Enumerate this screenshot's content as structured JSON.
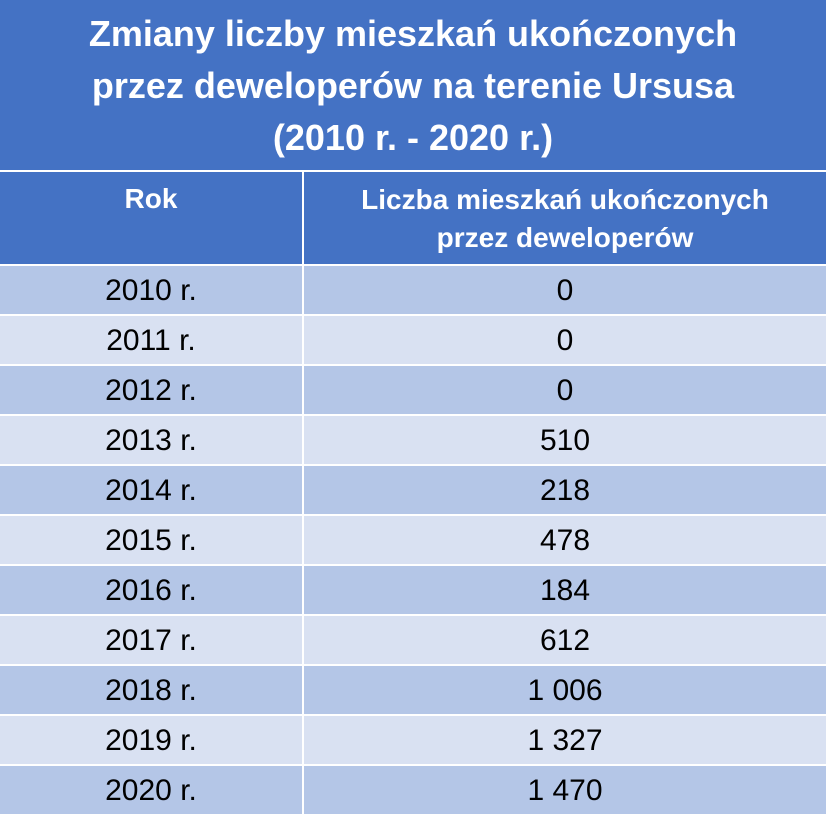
{
  "title": {
    "lines": [
      "Zmiany liczby mieszkań ukończonych",
      "przez deweloperów na terenie Ursusa",
      "(2010 r. - 2020 r.)"
    ]
  },
  "table": {
    "headers": {
      "year": "Rok",
      "count_line1": "Liczba mieszkań ukończonych",
      "count_line2": "przez deweloperów"
    },
    "rows": [
      {
        "year": "2010 r.",
        "count": "0"
      },
      {
        "year": "2011 r.",
        "count": "0"
      },
      {
        "year": "2012 r.",
        "count": "0"
      },
      {
        "year": "2013 r.",
        "count": "510"
      },
      {
        "year": "2014 r.",
        "count": "218"
      },
      {
        "year": "2015 r.",
        "count": "478"
      },
      {
        "year": "2016 r.",
        "count": "184"
      },
      {
        "year": "2017 r.",
        "count": "612"
      },
      {
        "year": "2018 r.",
        "count": "1 006"
      },
      {
        "year": "2019 r.",
        "count": "1 327"
      },
      {
        "year": "2020 r.",
        "count": "1 470"
      }
    ]
  },
  "colors": {
    "header_bg": "#4472c4",
    "row_odd_bg": "#b4c6e7",
    "row_even_bg": "#d9e1f2"
  }
}
